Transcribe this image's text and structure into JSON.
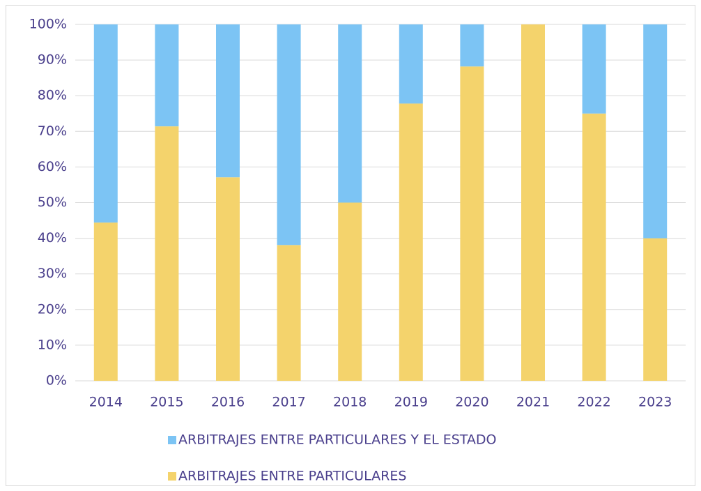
{
  "chart_data": {
    "type": "stacked_bar_100",
    "categories": [
      "2014",
      "2015",
      "2016",
      "2017",
      "2018",
      "2019",
      "2020",
      "2021",
      "2022",
      "2023"
    ],
    "series": [
      {
        "name": "ARBITRAJES ENTRE PARTICULARES",
        "color": "#f4d36c",
        "values": [
          44.4,
          71.4,
          57.1,
          38.1,
          50,
          77.8,
          88.2,
          100,
          75,
          40
        ]
      },
      {
        "name": "ARBITRAJES ENTRE PARTICULARES Y EL ESTADO",
        "color": "#7cc4f4",
        "values": [
          55.6,
          28.6,
          42.9,
          61.9,
          50,
          22.2,
          11.8,
          0,
          25,
          60
        ]
      }
    ],
    "ylim": [
      0,
      100
    ],
    "yticks": [
      {
        "value": 0,
        "label": "0%"
      },
      {
        "value": 10,
        "label": "10%"
      },
      {
        "value": 20,
        "label": "20%"
      },
      {
        "value": 30,
        "label": "30%"
      },
      {
        "value": 40,
        "label": "40%"
      },
      {
        "value": 50,
        "label": "50%"
      },
      {
        "value": 60,
        "label": "60%"
      },
      {
        "value": 70,
        "label": "70%"
      },
      {
        "value": 80,
        "label": "80%"
      },
      {
        "value": 90,
        "label": "90%"
      },
      {
        "value": 100,
        "label": "100%"
      }
    ],
    "grid": true,
    "legend": "bottom"
  }
}
